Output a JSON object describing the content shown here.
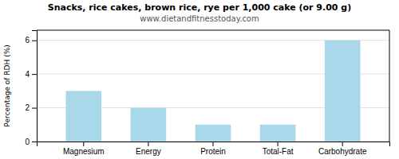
{
  "chart_data": {
    "type": "bar",
    "title": "Snacks, rice cakes, brown rice, rye per 1,000 cake (or 9.00 g)",
    "subtitle": "www.dietandfitnesstoday.com",
    "categories": [
      "Magnesium",
      "Energy",
      "Protein",
      "Total-Fat",
      "Carbohydrate"
    ],
    "values": [
      3.0,
      2.0,
      1.0,
      1.0,
      6.0
    ],
    "color": "#a8d8ea",
    "ylabel": "Percentage of RDH (%)",
    "ylim": [
      0,
      6.6
    ],
    "yticks": [
      0,
      2,
      4,
      6
    ],
    "grid": true
  }
}
